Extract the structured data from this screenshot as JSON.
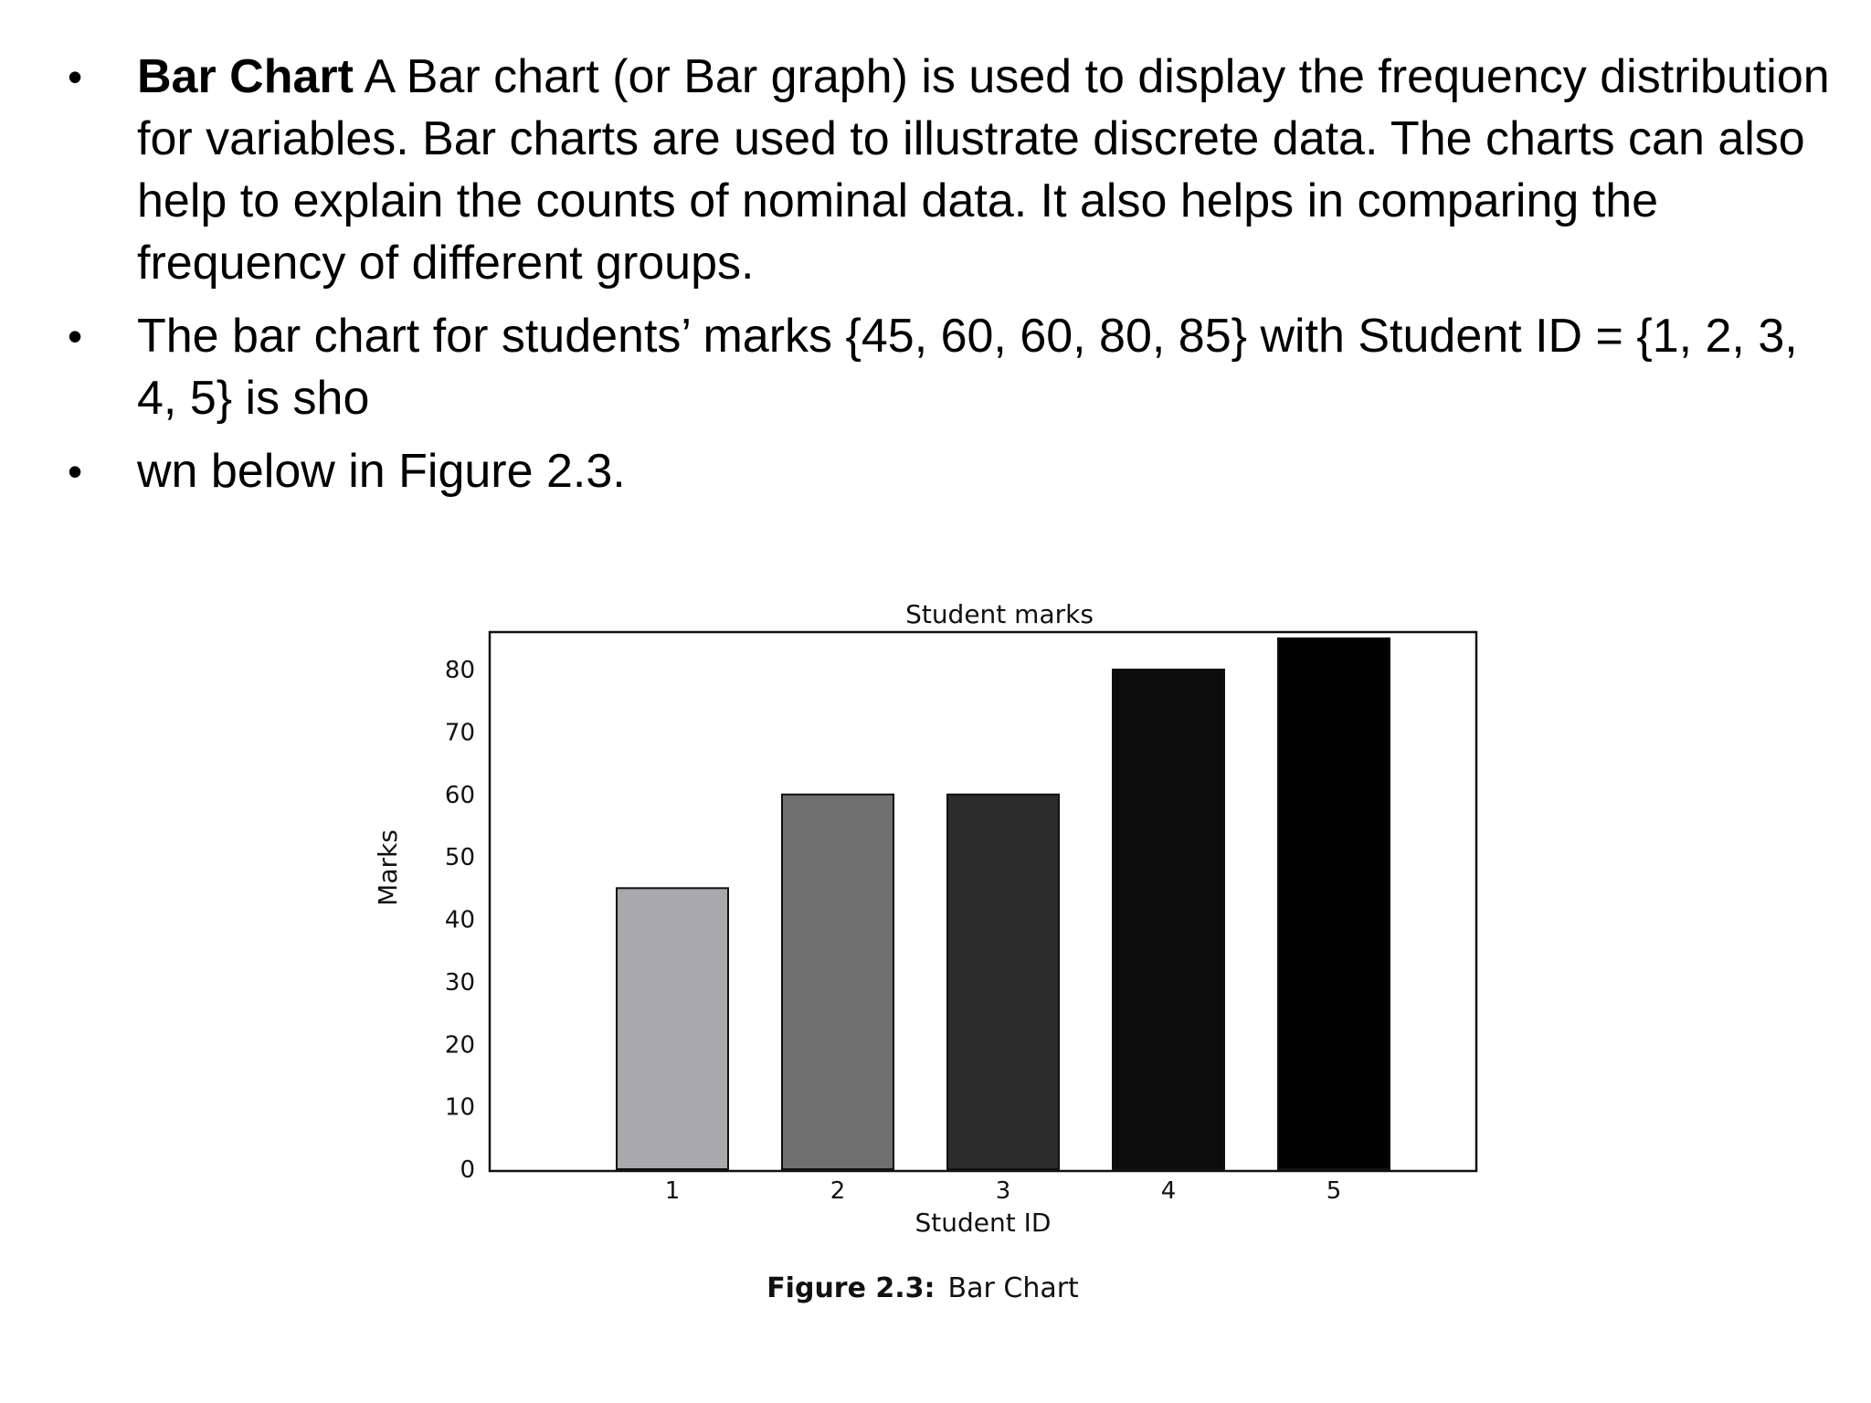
{
  "bullets": [
    {
      "bold": "Bar Chart",
      "text": " A Bar chart (or Bar graph) is used to display the frequency distribution for variables. Bar charts are used to illustrate discrete data. The charts can also help to explain the counts of nominal data. It also helps in comparing the frequency of different groups."
    },
    {
      "bold": "",
      "text": "The bar chart for students’ marks {45, 60, 60, 80, 85} with Student ID = {1, 2, 3, 4, 5} is sho"
    },
    {
      "bold": "",
      "text": "wn below in Figure 2.3."
    }
  ],
  "figure": {
    "caption_bold": "Figure 2.3:",
    "caption_text": "Bar Chart"
  },
  "chart_data": {
    "type": "bar",
    "title": "Student marks",
    "xlabel": "Student ID",
    "ylabel": "Marks",
    "categories": [
      "1",
      "2",
      "3",
      "4",
      "5"
    ],
    "values": [
      45,
      60,
      60,
      80,
      85
    ],
    "ylim": [
      0,
      86
    ],
    "yticks": [
      0,
      10,
      20,
      30,
      40,
      50,
      60,
      70,
      80
    ],
    "grid": false,
    "legend": "none",
    "bar_colors": [
      "#a9a9ab",
      "#6f6f70",
      "#2c2c2c",
      "#0c0c0c",
      "#020202"
    ]
  }
}
